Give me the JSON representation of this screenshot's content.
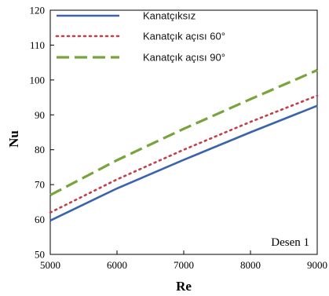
{
  "chart_data": {
    "type": "line",
    "title": "",
    "xlabel": "Re",
    "ylabel": "Nu",
    "xlim": [
      5000,
      9000
    ],
    "ylim": [
      50,
      120
    ],
    "xticks": [
      5000,
      6000,
      7000,
      8000,
      9000
    ],
    "yticks": [
      50,
      60,
      70,
      80,
      90,
      100,
      110,
      120
    ],
    "grid": false,
    "legend_position": "top-left",
    "annotation": "Desen 1",
    "series": [
      {
        "name": "Kanatçıksız",
        "color": "#3a63ad",
        "style": "solid",
        "x": [
          5000,
          6000,
          7000,
          8000,
          9000
        ],
        "y": [
          59.7,
          68.9,
          77.1,
          85.0,
          92.6
        ]
      },
      {
        "name": "Kanatçık açısı 60°",
        "color": "#c0404a",
        "style": "dotted",
        "x": [
          5000,
          6000,
          7000,
          8000,
          9000
        ],
        "y": [
          62.0,
          71.5,
          80.0,
          88.0,
          95.5
        ]
      },
      {
        "name": "Kanatçık açısı 90°",
        "color": "#77a43c",
        "style": "dashed",
        "x": [
          5000,
          6000,
          7000,
          8000,
          9000
        ],
        "y": [
          67.0,
          77.0,
          86.0,
          94.5,
          102.8
        ]
      }
    ]
  }
}
